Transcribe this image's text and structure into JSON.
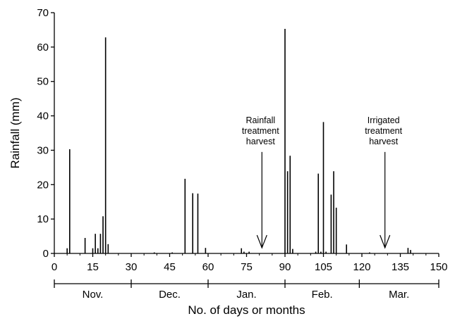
{
  "chart_data": {
    "type": "bar",
    "title": "",
    "xlabel": "No. of days or months",
    "ylabel": "Rainfall (mm)",
    "xlim": [
      0,
      150
    ],
    "ylim": [
      0,
      70
    ],
    "x_ticks": [
      0,
      15,
      30,
      45,
      60,
      75,
      90,
      105,
      120,
      135,
      150
    ],
    "y_ticks": [
      0,
      10,
      20,
      30,
      40,
      50,
      60,
      70
    ],
    "grid": false,
    "legend": "none",
    "bar_color": "#000000",
    "months": [
      {
        "label": "Nov.",
        "start": 0,
        "end": 30
      },
      {
        "label": "Dec.",
        "start": 30,
        "end": 60
      },
      {
        "label": "Jan.",
        "start": 60,
        "end": 90
      },
      {
        "label": "Feb.",
        "start": 90,
        "end": 119
      },
      {
        "label": "Mar.",
        "start": 119,
        "end": 150
      }
    ],
    "points": [
      {
        "x": 5,
        "y": 1.5
      },
      {
        "x": 6,
        "y": 30.3
      },
      {
        "x": 12,
        "y": 4.5
      },
      {
        "x": 15,
        "y": 1.5
      },
      {
        "x": 16,
        "y": 5.7
      },
      {
        "x": 17,
        "y": 1.5
      },
      {
        "x": 18,
        "y": 5.7
      },
      {
        "x": 19,
        "y": 10.8
      },
      {
        "x": 20,
        "y": 62.8
      },
      {
        "x": 21,
        "y": 2.7
      },
      {
        "x": 39,
        "y": 0.3
      },
      {
        "x": 46,
        "y": 0.3
      },
      {
        "x": 51,
        "y": 21.7
      },
      {
        "x": 54,
        "y": 17.5
      },
      {
        "x": 56,
        "y": 17.4
      },
      {
        "x": 59,
        "y": 1.6
      },
      {
        "x": 73,
        "y": 1.5
      },
      {
        "x": 74,
        "y": 0.5
      },
      {
        "x": 76,
        "y": 0.5
      },
      {
        "x": 90,
        "y": 65.3
      },
      {
        "x": 91,
        "y": 23.9
      },
      {
        "x": 92,
        "y": 28.4
      },
      {
        "x": 93,
        "y": 1.3
      },
      {
        "x": 102,
        "y": 0.5
      },
      {
        "x": 103,
        "y": 23.2
      },
      {
        "x": 104,
        "y": 0.5
      },
      {
        "x": 105,
        "y": 38.2
      },
      {
        "x": 106,
        "y": 0.5
      },
      {
        "x": 108,
        "y": 17.1
      },
      {
        "x": 109,
        "y": 23.9
      },
      {
        "x": 110,
        "y": 13.3
      },
      {
        "x": 114,
        "y": 2.6
      },
      {
        "x": 123,
        "y": 0.3
      },
      {
        "x": 138,
        "y": 1.6
      },
      {
        "x": 139,
        "y": 1.0
      }
    ],
    "annotations": [
      {
        "lines": [
          "Rainfall",
          "treatment",
          "harvest"
        ],
        "x": 81,
        "arrow_from_y": 29.5
      },
      {
        "lines": [
          "Irrigated",
          "treatment",
          "harvest"
        ],
        "x": 129,
        "arrow_from_y": 29.5
      }
    ]
  }
}
